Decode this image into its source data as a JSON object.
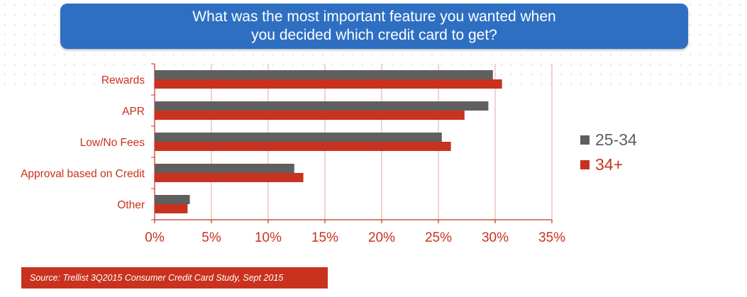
{
  "title": {
    "line1": "What was the most important feature you wanted when",
    "line2": "you decided which credit card to get?"
  },
  "colors": {
    "title_bg": "#2e6fc2",
    "series_25_34": "#5f5f5f",
    "series_34_plus": "#c8321e",
    "axis": "#c8321e",
    "tick_text": "#c8321e",
    "source_bg": "#c8321e"
  },
  "chart_data": {
    "type": "bar",
    "orientation": "horizontal",
    "categories": [
      "Rewards",
      "APR",
      "Low/No Fees",
      "Approval based on Credit",
      "Other"
    ],
    "series": [
      {
        "name": "25-34",
        "values": [
          29.8,
          29.4,
          25.3,
          12.3,
          3.1
        ]
      },
      {
        "name": "34+",
        "values": [
          30.6,
          27.3,
          26.1,
          13.1,
          2.9
        ]
      }
    ],
    "xlim": [
      0,
      35
    ],
    "xticks": [
      0,
      5,
      10,
      15,
      20,
      25,
      30,
      35
    ],
    "tick_labels": [
      "0%",
      "5%",
      "10%",
      "15%",
      "20%",
      "25%",
      "30%",
      "35%"
    ],
    "grid": "vertical",
    "legend_position": "right"
  },
  "source": "Source:  Trellist 3Q2015 Consumer Credit Card Study, Sept 2015"
}
